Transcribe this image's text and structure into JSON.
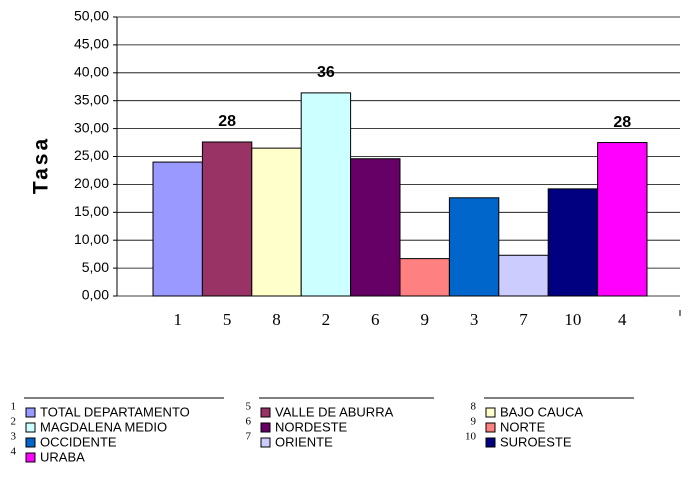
{
  "chart_data": {
    "type": "bar",
    "y_label": "Tasa",
    "categories": [
      "1",
      "5",
      "8",
      "2",
      "6",
      "9",
      "3",
      "7",
      "10",
      "4"
    ],
    "names": [
      "TOTAL DEPARTAMENTO",
      "VALLE DE ABURRA",
      "BAJO CAUCA",
      "MAGDALENA MEDIO",
      "NORDESTE",
      "NORTE",
      "OCCIDENTE",
      "ORIENTE",
      "SUROESTE",
      "URABA"
    ],
    "values": [
      24.0,
      27.6,
      26.5,
      36.4,
      24.6,
      6.7,
      17.6,
      7.3,
      19.2,
      27.5
    ],
    "value_labels": [
      null,
      "28",
      null,
      "36",
      null,
      null,
      null,
      null,
      null,
      "28"
    ],
    "colors": [
      "#9999ff",
      "#993366",
      "#ffffcc",
      "#ccffff",
      "#660066",
      "#ff8080",
      "#0066cc",
      "#ccccff",
      "#000080",
      "#ff00ff"
    ],
    "ylim": [
      0,
      50
    ],
    "yticks": [
      {
        "value": 0,
        "label": "0,00"
      },
      {
        "value": 5,
        "label": "5,00"
      },
      {
        "value": 10,
        "label": "10,00"
      },
      {
        "value": 15,
        "label": "15,00"
      },
      {
        "value": 20,
        "label": "20,00"
      },
      {
        "value": 25,
        "label": "25,00"
      },
      {
        "value": 30,
        "label": "30,00"
      },
      {
        "value": 35,
        "label": "35,00"
      },
      {
        "value": 40,
        "label": "40,00"
      },
      {
        "value": 45,
        "label": "45,00"
      },
      {
        "value": 50,
        "label": "50,00"
      }
    ],
    "grid": true
  }
}
